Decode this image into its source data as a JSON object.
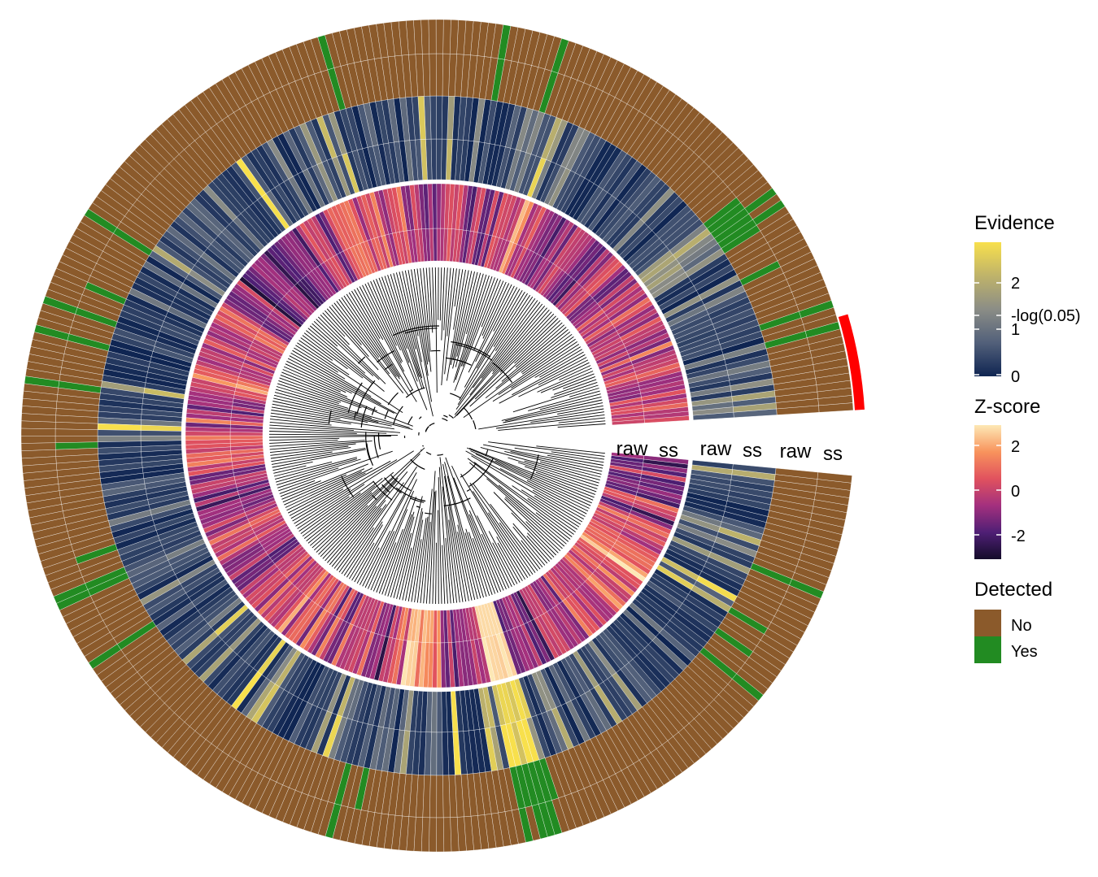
{
  "chart_data": {
    "type": "heatmap",
    "layout": "circular",
    "tree": "phylogenetic",
    "tracks": [
      {
        "name": "Z-score",
        "columns": [
          "raw",
          "ss"
        ]
      },
      {
        "name": "Evidence",
        "columns": [
          "raw",
          "ss"
        ]
      },
      {
        "name": "Detected",
        "columns": [
          "raw",
          "ss"
        ]
      }
    ],
    "legends": [
      {
        "title": "Evidence",
        "kind": "gradient",
        "ticks": [
          {
            "value": 0,
            "label": "0"
          },
          {
            "value": 1,
            "label": "1"
          },
          {
            "value": 1.301,
            "label": "-log(0.05)"
          },
          {
            "value": 2,
            "label": "2"
          }
        ],
        "range": [
          0,
          3
        ],
        "colors": [
          "#0f2552",
          "#52607a",
          "#8b8d86",
          "#bfb36a",
          "#f8e04c"
        ]
      },
      {
        "title": "Z-score",
        "kind": "gradient",
        "ticks": [
          {
            "value": 2,
            "label": "2"
          },
          {
            "value": 0,
            "label": "0"
          },
          {
            "value": -2,
            "label": "-2"
          }
        ],
        "range": [
          -3,
          3
        ],
        "colors": [
          "#140c2a",
          "#4f1f75",
          "#a3307e",
          "#e1525e",
          "#f8935c",
          "#fde8b5"
        ]
      },
      {
        "title": "Detected",
        "kind": "categorical",
        "items": [
          {
            "label": "No",
            "color": "#8b5a2b"
          },
          {
            "label": "Yes",
            "color": "#228b22"
          }
        ]
      }
    ],
    "highlight_color": "#ff0000"
  }
}
